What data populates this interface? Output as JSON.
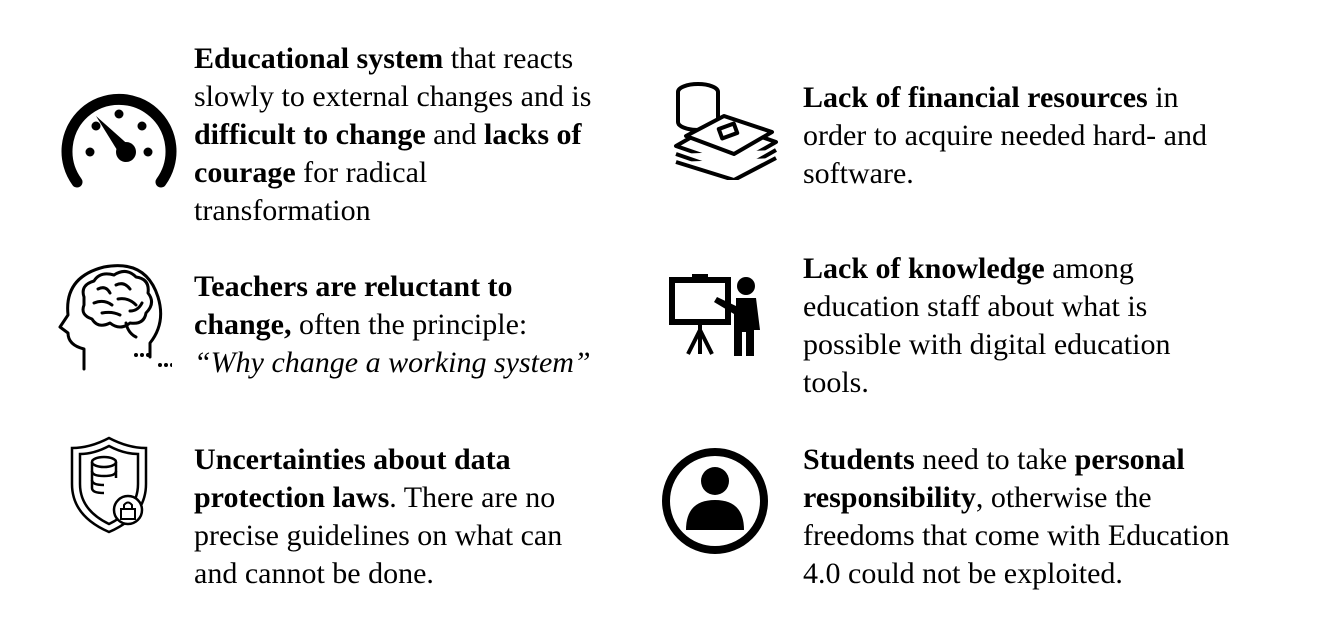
{
  "items": [
    {
      "id": "educational-system",
      "icon": "speedometer-icon",
      "lines": [
        [
          {
            "t": "Educational system",
            "b": true
          },
          {
            "t": " that reacts"
          }
        ],
        [
          {
            "t": "slowly to external changes and is"
          }
        ],
        [
          {
            "t": "difficult to change",
            "b": true
          },
          {
            "t": " and "
          },
          {
            "t": "lacks of",
            "b": true
          }
        ],
        [
          {
            "t": "courage",
            "b": true
          },
          {
            "t": " for radical"
          }
        ],
        [
          {
            "t": "transformation"
          }
        ]
      ]
    },
    {
      "id": "financial-resources",
      "icon": "money-stack-icon",
      "lines": [
        [
          {
            "t": "Lack of financial resources",
            "b": true
          },
          {
            "t": " in"
          }
        ],
        [
          {
            "t": "order to acquire needed hard- and"
          }
        ],
        [
          {
            "t": "software."
          }
        ]
      ]
    },
    {
      "id": "teachers-reluctant",
      "icon": "brain-head-icon",
      "lines": [
        [
          {
            "t": "Teachers are reluctant to",
            "b": true
          }
        ],
        [
          {
            "t": "change,",
            "b": true
          },
          {
            "t": " often the principle:"
          }
        ],
        [
          {
            "t": "“Why change a working system”",
            "i": true
          }
        ]
      ]
    },
    {
      "id": "lack-of-knowledge",
      "icon": "teacher-board-icon",
      "lines": [
        [
          {
            "t": "Lack of knowledge",
            "b": true
          },
          {
            "t": " among"
          }
        ],
        [
          {
            "t": "education staff about what is"
          }
        ],
        [
          {
            "t": "possible with digital education"
          }
        ],
        [
          {
            "t": "tools."
          }
        ]
      ]
    },
    {
      "id": "data-protection",
      "icon": "shield-database-lock-icon",
      "lines": [
        [
          {
            "t": "Uncertainties about data",
            "b": true
          }
        ],
        [
          {
            "t": "protection laws",
            "b": true
          },
          {
            "t": ". There are no"
          }
        ],
        [
          {
            "t": "precise guidelines on what can"
          }
        ],
        [
          {
            "t": "and cannot be done."
          }
        ]
      ]
    },
    {
      "id": "students-responsibility",
      "icon": "person-circle-icon",
      "lines": [
        [
          {
            "t": "Students",
            "b": true
          },
          {
            "t": " need to take "
          },
          {
            "t": "personal",
            "b": true
          }
        ],
        [
          {
            "t": "responsibility",
            "b": true
          },
          {
            "t": ", otherwise the"
          }
        ],
        [
          {
            "t": "freedoms that come with Education"
          }
        ],
        [
          {
            "t": "4.0 could not be exploited."
          }
        ]
      ]
    }
  ]
}
